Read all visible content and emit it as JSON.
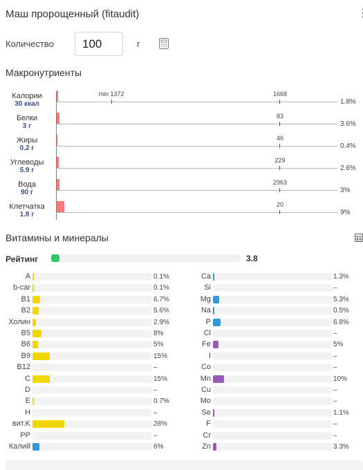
{
  "header": {
    "title": "Маш пророщенный (fitaudit)",
    "menu_icon": "kebab-menu-icon"
  },
  "quantity": {
    "label": "Количество",
    "value": "100",
    "unit": "г",
    "calculator_icon": "calculator-icon"
  },
  "macro": {
    "title": "Макронутриенты",
    "rows": [
      {
        "name": "Калории",
        "value": "30 ккал",
        "percent": "1.8%",
        "fraction": 0.018,
        "reference": "1668",
        "min_label": "min 1372"
      },
      {
        "name": "Белки",
        "value": "3 г",
        "percent": "3.6%",
        "fraction": 0.036,
        "reference": "83"
      },
      {
        "name": "Жиры",
        "value": "0.2 г",
        "percent": "0.4%",
        "fraction": 0.004,
        "reference": "46"
      },
      {
        "name": "Углеводы",
        "value": "5.9 г",
        "percent": "2.6%",
        "fraction": 0.026,
        "reference": "229"
      },
      {
        "name": "Вода",
        "value": "90 г",
        "percent": "3%",
        "fraction": 0.03,
        "reference": "2963"
      },
      {
        "name": "Клетчатка",
        "value": "1.8 г",
        "percent": "9%",
        "fraction": 0.09,
        "reference": "20"
      }
    ]
  },
  "vitamins": {
    "title": "Витамины и минералы",
    "table_icon": "table-icon",
    "rating_label": "Рейтинг",
    "rating_value": "3.8",
    "rating_fraction": 0.045,
    "rating_color": "#35c46d",
    "colors": {
      "vitamin": "#f2d600",
      "mineral_blue": "#3498db",
      "mineral_purple": "#9b59b6"
    },
    "left": [
      {
        "name": "A",
        "percent": "0.1%",
        "fill": 0.001,
        "color": "#f2d600"
      },
      {
        "name": "b-car",
        "percent": "0.1%",
        "fill": 0.001,
        "color": "#f2d600"
      },
      {
        "name": "B1",
        "percent": "6.7%",
        "fill": 0.067,
        "color": "#f2d600"
      },
      {
        "name": "B2",
        "percent": "5.6%",
        "fill": 0.056,
        "color": "#f2d600"
      },
      {
        "name": "Холин",
        "percent": "2.9%",
        "fill": 0.029,
        "color": "#f2d600"
      },
      {
        "name": "B5",
        "percent": "8%",
        "fill": 0.08,
        "color": "#f2d600"
      },
      {
        "name": "B6",
        "percent": "5%",
        "fill": 0.05,
        "color": "#f2d600"
      },
      {
        "name": "B9",
        "percent": "15%",
        "fill": 0.15,
        "color": "#f2d600"
      },
      {
        "name": "B12",
        "percent": "–",
        "fill": 0,
        "color": "#f2d600"
      },
      {
        "name": "C",
        "percent": "15%",
        "fill": 0.15,
        "color": "#f2d600"
      },
      {
        "name": "D",
        "percent": "–",
        "fill": 0,
        "color": "#f2d600"
      },
      {
        "name": "E",
        "percent": "0.7%",
        "fill": 0.007,
        "color": "#f2d600"
      },
      {
        "name": "H",
        "percent": "–",
        "fill": 0,
        "color": "#f2d600"
      },
      {
        "name": "вит.K",
        "percent": "28%",
        "fill": 0.28,
        "color": "#f2d600"
      },
      {
        "name": "PP",
        "percent": "–",
        "fill": 0,
        "color": "#f2d600"
      },
      {
        "name": "Калий",
        "percent": "6%",
        "fill": 0.06,
        "color": "#3498db"
      }
    ],
    "right": [
      {
        "name": "Ca",
        "percent": "1.3%",
        "fill": 0.013,
        "color": "#3498db"
      },
      {
        "name": "Si",
        "percent": "–",
        "fill": 0,
        "color": "#3498db"
      },
      {
        "name": "Mg",
        "percent": "5.3%",
        "fill": 0.053,
        "color": "#3498db"
      },
      {
        "name": "Na",
        "percent": "0.5%",
        "fill": 0.005,
        "color": "#3498db"
      },
      {
        "name": "P",
        "percent": "6.8%",
        "fill": 0.068,
        "color": "#3498db"
      },
      {
        "name": "Cl",
        "percent": "–",
        "fill": 0,
        "color": "#3498db"
      },
      {
        "name": "Fe",
        "percent": "5%",
        "fill": 0.05,
        "color": "#9b59b6"
      },
      {
        "name": "I",
        "percent": "–",
        "fill": 0,
        "color": "#9b59b6"
      },
      {
        "name": "Co",
        "percent": "–",
        "fill": 0,
        "color": "#9b59b6"
      },
      {
        "name": "Mn",
        "percent": "10%",
        "fill": 0.1,
        "color": "#9b59b6"
      },
      {
        "name": "Cu",
        "percent": "–",
        "fill": 0,
        "color": "#9b59b6"
      },
      {
        "name": "Mo",
        "percent": "–",
        "fill": 0,
        "color": "#9b59b6"
      },
      {
        "name": "Se",
        "percent": "1.1%",
        "fill": 0.011,
        "color": "#9b59b6"
      },
      {
        "name": "F",
        "percent": "–",
        "fill": 0,
        "color": "#9b59b6"
      },
      {
        "name": "Cr",
        "percent": "–",
        "fill": 0,
        "color": "#9b59b6"
      },
      {
        "name": "Zn",
        "percent": "3.3%",
        "fill": 0.033,
        "color": "#9b59b6"
      }
    ]
  }
}
